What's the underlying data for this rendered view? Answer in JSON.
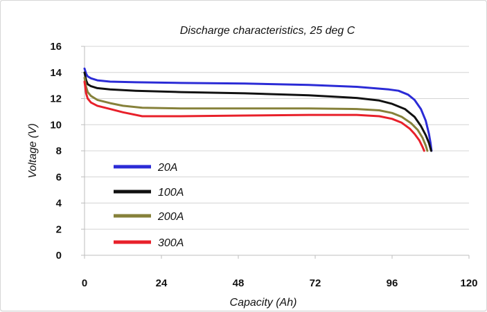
{
  "chart_data": {
    "type": "line",
    "title": "Discharge characteristics, 25 deg C",
    "xlabel": "Capacity (Ah)",
    "ylabel": "Voltage (V)",
    "xlim": [
      0,
      120
    ],
    "ylim": [
      0,
      16
    ],
    "xticks": [
      0,
      24,
      48,
      72,
      96,
      120
    ],
    "yticks": [
      0,
      2,
      4,
      6,
      8,
      10,
      12,
      14,
      16
    ],
    "xtick_labels": [
      "0",
      "24",
      "48",
      "72",
      "96",
      "120"
    ],
    "ytick_labels": [
      "0",
      "2",
      "4",
      "6",
      "8",
      "10",
      "12",
      "14",
      "16"
    ],
    "grid": "horizontal",
    "legend_position": "lower-left",
    "series": [
      {
        "name": "20A",
        "color": "#2b2bd6",
        "x": [
          0,
          0.5,
          1,
          2,
          4,
          8,
          16,
          30,
          50,
          70,
          85,
          95,
          98,
          101,
          103,
          105,
          106.5,
          107.5,
          108,
          108.3
        ],
        "y": [
          14.3,
          13.9,
          13.7,
          13.55,
          13.4,
          13.3,
          13.25,
          13.2,
          13.15,
          13.05,
          12.9,
          12.7,
          12.6,
          12.3,
          11.9,
          11.2,
          10.3,
          9.3,
          8.6,
          8.0
        ]
      },
      {
        "name": "100A",
        "color": "#111111",
        "x": [
          0,
          0.5,
          1,
          2,
          4,
          8,
          16,
          30,
          50,
          70,
          85,
          92,
          96,
          100,
          103,
          105,
          106.5,
          107.5,
          108.2
        ],
        "y": [
          14.0,
          13.4,
          13.1,
          12.95,
          12.8,
          12.7,
          12.6,
          12.5,
          12.4,
          12.25,
          12.05,
          11.85,
          11.6,
          11.2,
          10.6,
          9.9,
          9.2,
          8.6,
          8.0
        ]
      },
      {
        "name": "200A",
        "color": "#86813a",
        "x": [
          0,
          0.5,
          1,
          2,
          4,
          8,
          12,
          18,
          30,
          50,
          70,
          85,
          92,
          96,
          99,
          102,
          104,
          105.5,
          106.5,
          107
        ],
        "y": [
          13.6,
          12.9,
          12.5,
          12.2,
          11.9,
          11.65,
          11.45,
          11.3,
          11.25,
          11.25,
          11.25,
          11.2,
          11.1,
          10.9,
          10.6,
          10.1,
          9.6,
          9.0,
          8.4,
          8.0
        ]
      },
      {
        "name": "300A",
        "color": "#e8202a",
        "x": [
          0,
          0.5,
          1,
          2,
          4,
          8,
          12,
          18,
          30,
          50,
          70,
          85,
          92,
          96,
          99,
          101.5,
          103,
          104.5,
          105.5,
          106
        ],
        "y": [
          13.3,
          12.4,
          12.0,
          11.7,
          11.45,
          11.2,
          10.95,
          10.65,
          10.65,
          10.7,
          10.75,
          10.75,
          10.65,
          10.45,
          10.15,
          9.7,
          9.3,
          8.8,
          8.3,
          8.0
        ]
      }
    ]
  }
}
